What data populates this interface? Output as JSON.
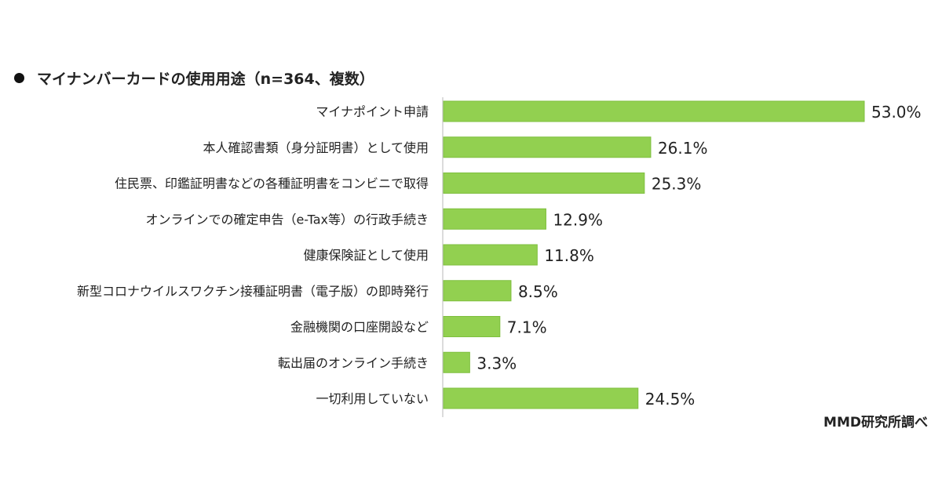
{
  "chart_data": {
    "type": "bar",
    "orientation": "horizontal",
    "title": "マイナンバーカードの使用用途（n=364、複数）",
    "source": "MMD研究所調べ",
    "categories": [
      "マイナポイント申請",
      "本人確認書類（身分証明書）として使用",
      "住民票、印鑑証明書などの各種証明書をコンビニで取得",
      "オンラインでの確定申告（e-Tax等）の行政手続き",
      "健康保険証として使用",
      "新型コロナウイルスワクチン接種証明書（電子版）の即時発行",
      "金融機関の口座開設など",
      "転出届のオンライン手続き",
      "一切利用していない"
    ],
    "values": [
      53.0,
      26.1,
      25.3,
      12.9,
      11.8,
      8.5,
      7.1,
      3.3,
      24.5
    ],
    "labels": [
      "53.0%",
      "26.1%",
      "25.3%",
      "12.9%",
      "11.8%",
      "8.5%",
      "7.1%",
      "3.3%",
      "24.5%"
    ],
    "unit": "%",
    "xlim": [
      0,
      53
    ],
    "grid": false,
    "legend": "none",
    "bar_color": "#92d050",
    "bar_border": "#7fbf3f",
    "axis_color": "#d0d0d0"
  }
}
